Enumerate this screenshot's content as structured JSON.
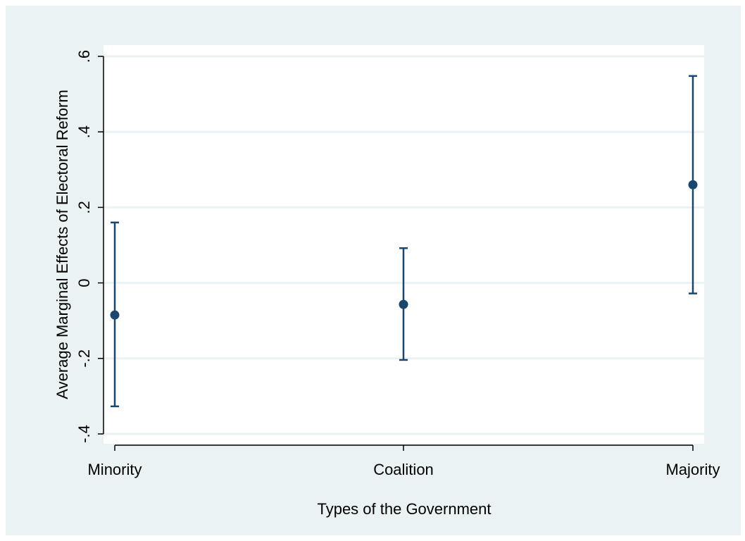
{
  "chart_data": {
    "type": "scatter",
    "subtype": "point estimates with confidence interval error bars",
    "title": "",
    "xlabel": "Types of the Government",
    "ylabel": "Average Marginal Effects of Electoral Reform",
    "categories": [
      "Minority",
      "Coalition",
      "Majority"
    ],
    "estimates": [
      -0.085,
      -0.057,
      0.26
    ],
    "ci_lower": [
      -0.327,
      -0.204,
      -0.028
    ],
    "ci_upper": [
      0.16,
      0.092,
      0.548
    ],
    "ylim": [
      -0.4,
      0.6
    ],
    "yticks": [
      -0.4,
      -0.2,
      0,
      0.2,
      0.4,
      0.6
    ],
    "ytick_labels": [
      "-.4",
      "-.2",
      "0",
      ".2",
      ".4",
      ".6"
    ],
    "grid": true,
    "legend": "none",
    "colors": {
      "background": "#eaf2f3",
      "plot_area": "#ffffff",
      "gridline": "#eaf2f3",
      "marker": "#1a476f",
      "axis": "#000000"
    }
  }
}
